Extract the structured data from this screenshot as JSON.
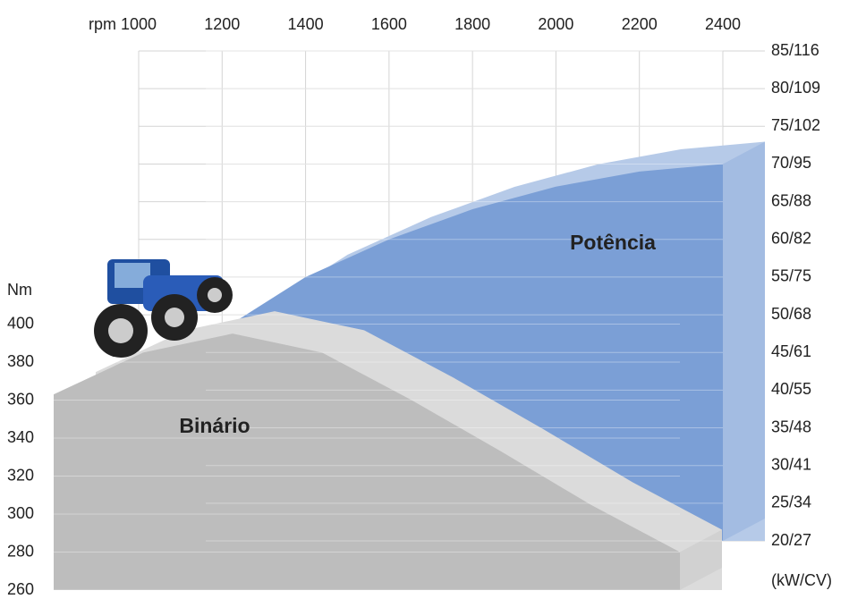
{
  "chart_data": {
    "type": "area3d",
    "x_label": "Nm",
    "y2_label": "(kW/CV)",
    "xticks": [
      {
        "value": 1000,
        "label": "rpm 1000"
      },
      1200,
      1400,
      1600,
      1800,
      2000,
      2200,
      2400
    ],
    "xlim": [
      1000,
      2400
    ],
    "ylim": [
      260,
      400
    ],
    "yticks": [
      260,
      280,
      300,
      320,
      340,
      360,
      380,
      400
    ],
    "y2lim": [
      20,
      85
    ],
    "y2ticks": [
      {
        "value": 20,
        "label": "20/27"
      },
      {
        "value": 25,
        "label": "25/34"
      },
      {
        "value": 30,
        "label": "30/41"
      },
      {
        "value": 35,
        "label": "35/48"
      },
      {
        "value": 40,
        "label": "40/55"
      },
      {
        "value": 45,
        "label": "45/61"
      },
      {
        "value": 50,
        "label": "50/68"
      },
      {
        "value": 55,
        "label": "55/75"
      },
      {
        "value": 60,
        "label": "60/82"
      },
      {
        "value": 65,
        "label": "65/88"
      },
      {
        "value": 70,
        "label": "70/95"
      },
      {
        "value": 75,
        "label": "75/102"
      },
      {
        "value": 80,
        "label": "80/109"
      },
      {
        "value": 85,
        "label": "85/116"
      }
    ],
    "grid": true,
    "series": [
      {
        "name": "Potência",
        "color": "#7b9fd6",
        "axis": "y2",
        "x": [
          1200,
          1400,
          1600,
          1800,
          2000,
          2200,
          2400
        ],
        "values": [
          48,
          55,
          60,
          64,
          67,
          69,
          70
        ]
      },
      {
        "name": "Binário",
        "color": "#bdbdbd",
        "x": [
          1000,
          1200,
          1400,
          1600,
          1800,
          2000,
          2200,
          2400
        ],
        "values": [
          363,
          385,
          395,
          385,
          360,
          333,
          305,
          280
        ]
      }
    ]
  }
}
